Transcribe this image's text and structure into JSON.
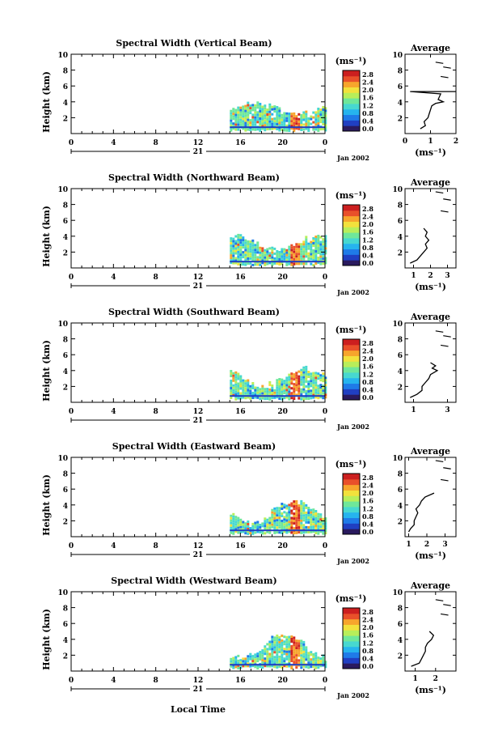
{
  "figure": {
    "xlabel": "Local Time",
    "date_label": "Jan 2002",
    "day_label": "21",
    "colorbar_unit": "(ms⁻¹)",
    "colorbar_ticks": [
      "2.8",
      "2.4",
      "2.0",
      "1.6",
      "1.2",
      "0.8",
      "0.4",
      "0.0"
    ],
    "colorscale": [
      "#2a1a5e",
      "#203fc2",
      "#1f7be8",
      "#26b4ee",
      "#47d8d0",
      "#6fe79a",
      "#b8ee5a",
      "#f2e13c",
      "#f7a52c",
      "#e9502a",
      "#cc1f1f"
    ]
  },
  "chart_data": [
    {
      "type": "heatmap",
      "title": "Spectral Width (Vertical Beam)",
      "ylabel": "Height (km)",
      "xlim": [
        0,
        24
      ],
      "ylim": [
        0,
        10
      ],
      "x_ticks": [
        "0",
        "4",
        "8",
        "12",
        "16",
        "20",
        "0"
      ],
      "y_ticks": [
        "2",
        "4",
        "6",
        "8",
        "10"
      ],
      "colorbar_range": [
        0,
        3.0
      ],
      "data_region": {
        "x": [
          15.0,
          24.0
        ],
        "y": [
          0.5,
          4.5
        ]
      },
      "avg_profile": {
        "title": "Average",
        "xlabel": "(ms⁻¹)",
        "xlim": [
          0,
          2
        ],
        "x_ticks": [
          "0",
          "1",
          "2"
        ],
        "y": [
          0.6,
          1.0,
          1.5,
          2.0,
          2.5,
          3.0,
          3.5,
          3.8,
          4.0,
          4.3,
          5.0,
          5.3,
          5.3
        ],
        "x": [
          0.6,
          0.8,
          0.75,
          0.9,
          0.95,
          1.0,
          1.05,
          1.2,
          1.5,
          1.3,
          1.4,
          0.2,
          2.0
        ]
      }
    },
    {
      "type": "heatmap",
      "title": "Spectral Width (Northward Beam)",
      "ylabel": "Height (km)",
      "xlim": [
        0,
        24
      ],
      "ylim": [
        0,
        10
      ],
      "x_ticks": [
        "0",
        "4",
        "8",
        "12",
        "16",
        "20",
        "0"
      ],
      "y_ticks": [
        "2",
        "4",
        "6",
        "8",
        "10"
      ],
      "colorbar_range": [
        0,
        3.0
      ],
      "data_region": {
        "x": [
          15.0,
          24.0
        ],
        "y": [
          0.5,
          4.5
        ]
      },
      "avg_profile": {
        "title": "Average",
        "xlabel": "(ms⁻¹)",
        "xlim": [
          0.5,
          3.5
        ],
        "x_ticks": [
          "1",
          "2",
          "3"
        ],
        "y": [
          0.6,
          1.0,
          1.5,
          2.0,
          2.5,
          3.0,
          3.5,
          4.0,
          4.5,
          5.0
        ],
        "x": [
          0.8,
          1.2,
          1.4,
          1.6,
          1.8,
          1.7,
          1.9,
          1.7,
          1.8,
          1.6
        ]
      }
    },
    {
      "type": "heatmap",
      "title": "Spectral Width (Southward Beam)",
      "ylabel": "Height (km)",
      "xlim": [
        0,
        24
      ],
      "ylim": [
        0,
        10
      ],
      "x_ticks": [
        "0",
        "4",
        "8",
        "12",
        "16",
        "20",
        "0"
      ],
      "y_ticks": [
        "2",
        "4",
        "6",
        "8",
        "10"
      ],
      "colorbar_range": [
        0,
        3.0
      ],
      "data_region": {
        "x": [
          15.0,
          24.0
        ],
        "y": [
          0.5,
          4.5
        ]
      },
      "avg_profile": {
        "title": "Average",
        "xlabel": "",
        "xlim": [
          0.5,
          3.5
        ],
        "x_ticks": [
          "1",
          "3"
        ],
        "y": [
          0.6,
          1.0,
          1.5,
          2.0,
          2.5,
          3.0,
          3.5,
          4.0,
          4.3,
          4.6,
          5.0
        ],
        "x": [
          0.8,
          1.2,
          1.5,
          1.5,
          1.7,
          1.9,
          2.0,
          2.4,
          2.1,
          2.3,
          2.0
        ]
      }
    },
    {
      "type": "heatmap",
      "title": "Spectral Width (Eastward Beam)",
      "ylabel": "Height (km)",
      "xlim": [
        0,
        24
      ],
      "ylim": [
        0,
        10
      ],
      "x_ticks": [
        "0",
        "4",
        "8",
        "12",
        "16",
        "20",
        "0"
      ],
      "y_ticks": [
        "2",
        "4",
        "6",
        "8",
        "10"
      ],
      "colorbar_range": [
        0,
        3.0
      ],
      "data_region": {
        "x": [
          15.0,
          24.0
        ],
        "y": [
          0.5,
          4.5
        ]
      },
      "avg_profile": {
        "title": "Average",
        "xlabel": "(ms⁻¹)",
        "xlim": [
          0.8,
          3.6
        ],
        "x_ticks": [
          "1",
          "2",
          "3"
        ],
        "y": [
          0.6,
          1.0,
          1.5,
          2.0,
          2.5,
          3.0,
          3.5,
          4.0,
          4.5,
          5.0,
          5.5
        ],
        "x": [
          1.0,
          1.1,
          1.3,
          1.3,
          1.4,
          1.5,
          1.4,
          1.6,
          1.7,
          1.9,
          2.4
        ]
      }
    },
    {
      "type": "heatmap",
      "title": "Spectral Width (Westward Beam)",
      "ylabel": "Height (km)",
      "xlim": [
        0,
        24
      ],
      "ylim": [
        0,
        10
      ],
      "x_ticks": [
        "0",
        "4",
        "8",
        "12",
        "16",
        "20",
        "0"
      ],
      "y_ticks": [
        "2",
        "4",
        "6",
        "8",
        "10"
      ],
      "colorbar_range": [
        0,
        3.0
      ],
      "data_region": {
        "x": [
          15.0,
          24.0
        ],
        "y": [
          0.5,
          4.5
        ]
      },
      "avg_profile": {
        "title": "Average",
        "xlabel": "(ms⁻¹)",
        "xlim": [
          0.5,
          3.0
        ],
        "x_ticks": [
          "1",
          "2"
        ],
        "y": [
          0.6,
          1.0,
          1.5,
          2.0,
          2.5,
          3.0,
          3.5,
          4.0,
          4.5,
          5.0
        ],
        "x": [
          0.8,
          1.2,
          1.3,
          1.4,
          1.5,
          1.5,
          1.6,
          1.8,
          1.9,
          1.7
        ]
      }
    }
  ]
}
